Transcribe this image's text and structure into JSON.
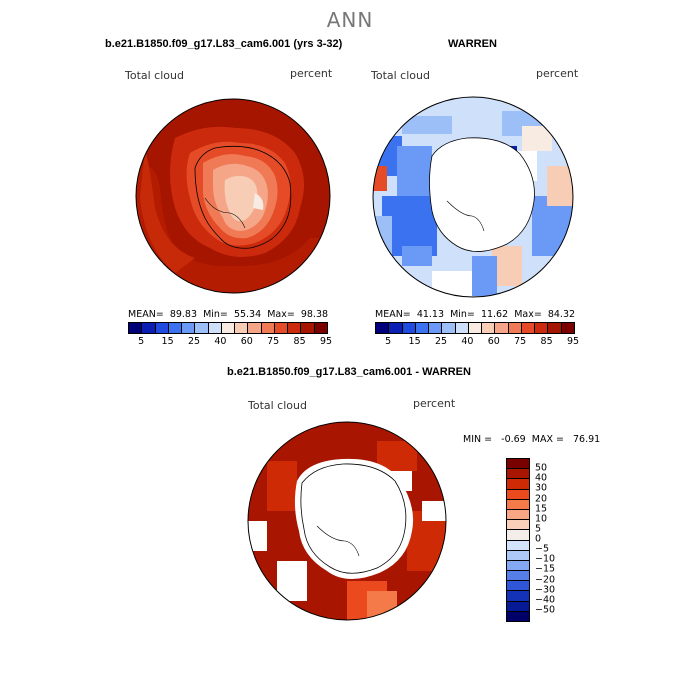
{
  "page_title": "ANN",
  "panel1": {
    "title": "b.e21.B1850.f09_g17.L83_cam6.001 (yrs 3-32)",
    "left_label": "Total cloud",
    "right_label": "percent",
    "mean_label": "MEAN=",
    "mean": "89.83",
    "min_label": "Min=",
    "min": "55.34",
    "max_label": "Max=",
    "max": "98.38"
  },
  "panel2": {
    "title": "WARREN",
    "left_label": "Total cloud",
    "right_label": "percent",
    "mean_label": "MEAN=",
    "mean": "41.13",
    "min_label": "Min=",
    "min": "11.62",
    "max_label": "Max=",
    "max": "84.32"
  },
  "panel3": {
    "title": "b.e21.B1850.f09_g17.L83_cam6.001 - WARREN",
    "left_label": "Total cloud",
    "right_label": "percent",
    "minmax_text": "MIN =   -0.69  MAX =   76.91"
  },
  "colorbar_top": {
    "colors": [
      "#00007a",
      "#0b1fb5",
      "#1f4be0",
      "#3b72f0",
      "#6a9af5",
      "#9dbff8",
      "#cfe0fb",
      "#f7ebe2",
      "#f8cdb6",
      "#f5a688",
      "#f07a56",
      "#e44b26",
      "#cc2a0c",
      "#a51500",
      "#7a0000"
    ],
    "tick_labels": [
      "5",
      "15",
      "25",
      "40",
      "60",
      "75",
      "85",
      "95"
    ]
  },
  "colorbar_diff": {
    "colors": [
      "#7a0000",
      "#a81500",
      "#cf2a06",
      "#ea4a1d",
      "#f47a4a",
      "#f8a684",
      "#fbd0bb",
      "#f3eeea",
      "#d3e3fb",
      "#adc9f7",
      "#84a9f2",
      "#567ee8",
      "#2f56d8",
      "#1432b8",
      "#071a95",
      "#00006a"
    ],
    "tick_labels": [
      "50",
      "40",
      "30",
      "20",
      "15",
      "10",
      "5",
      "0",
      "−5",
      "−10",
      "−15",
      "−20",
      "−30",
      "−40",
      "−50"
    ]
  }
}
